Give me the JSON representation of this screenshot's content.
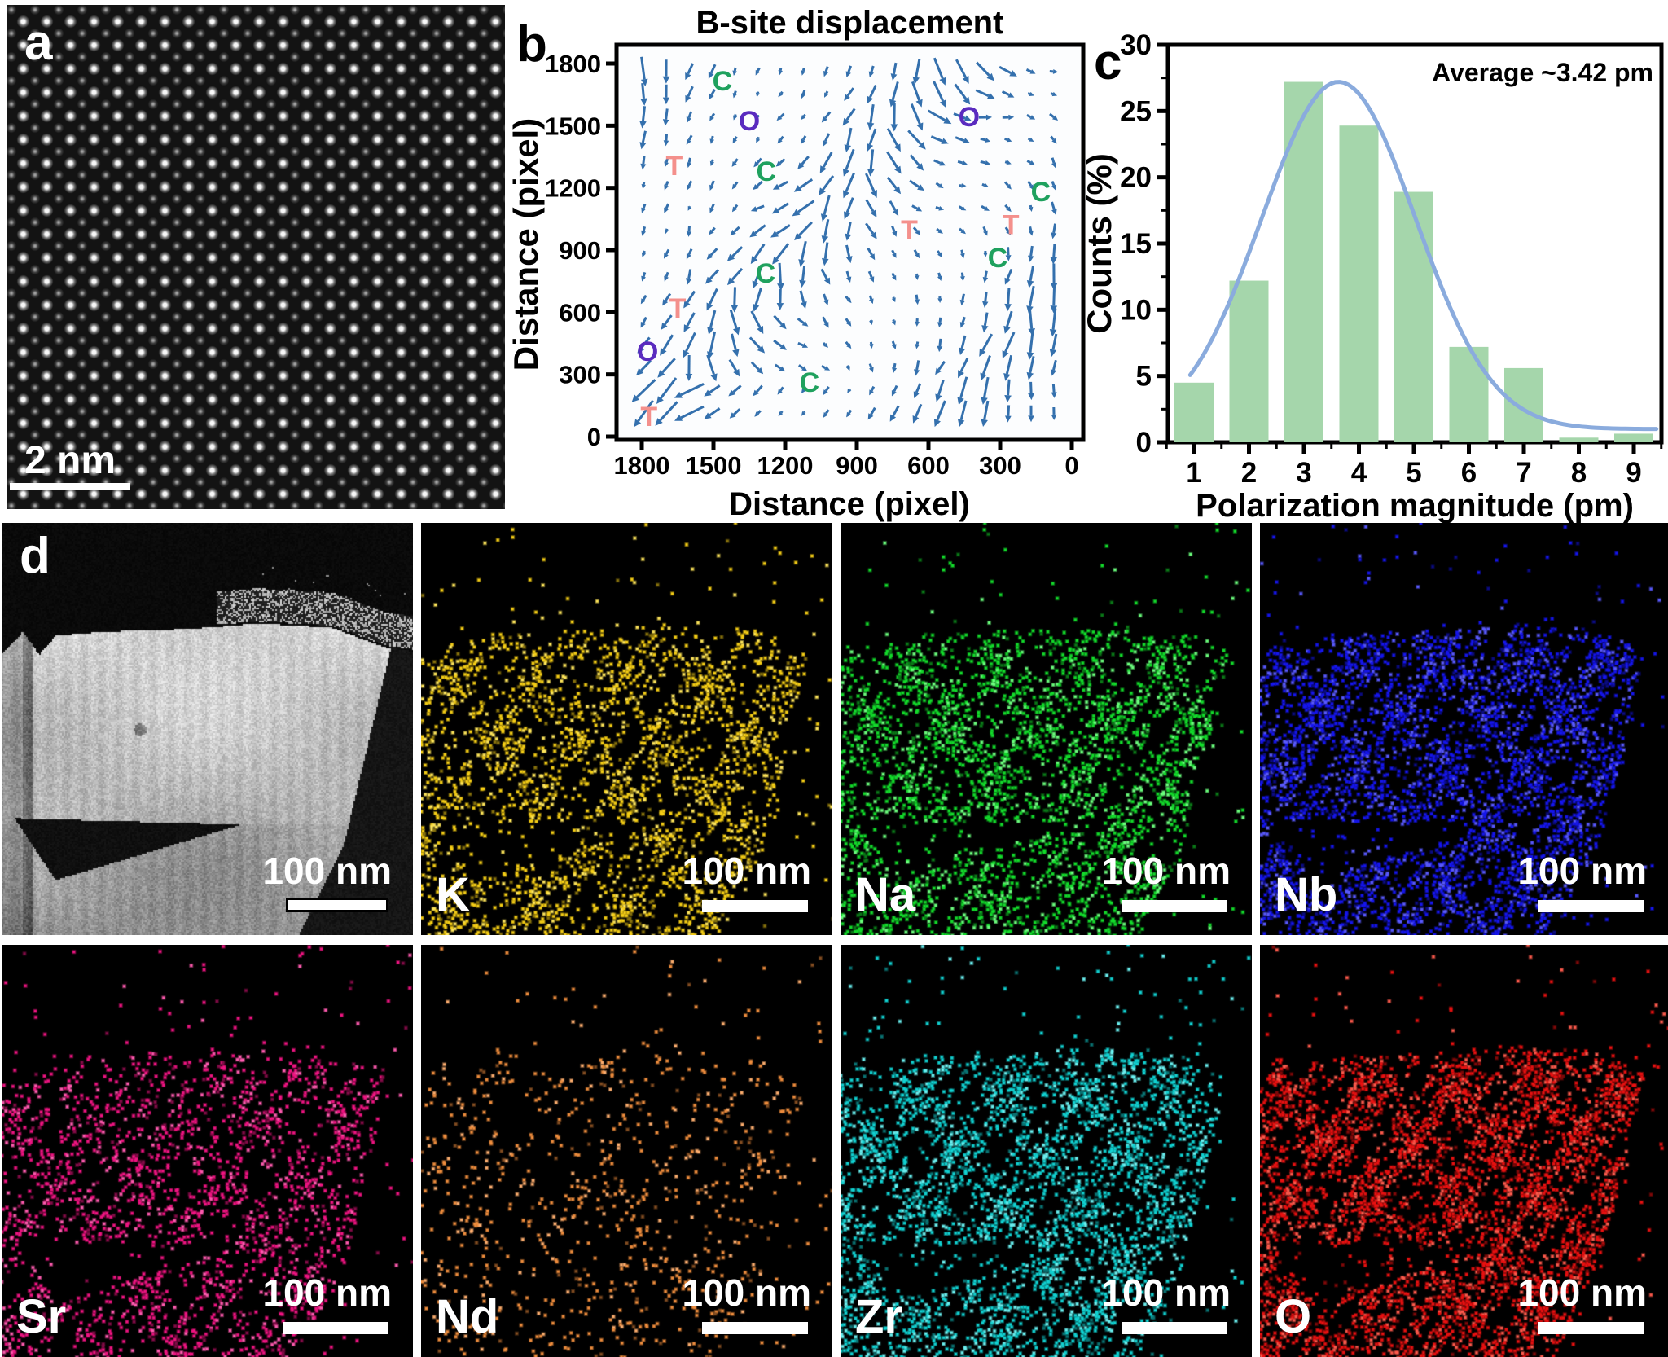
{
  "panels": {
    "a": {
      "letter": "a",
      "scalebar_label": "2 nm"
    },
    "b": {
      "letter": "b"
    },
    "c": {
      "letter": "c"
    },
    "d": {
      "letter": "d",
      "tiles": [
        {
          "kind": "haadf",
          "label": "",
          "scalebar_label": "100 nm",
          "seed": 11
        },
        {
          "kind": "map",
          "label": "K",
          "color": "#f6cf17",
          "bright": "#ffe65c",
          "density": 0.4,
          "scalebar_label": "100 nm",
          "seed": 21
        },
        {
          "kind": "map",
          "label": "Na",
          "color": "#14dd2c",
          "bright": "#6cff7e",
          "density": 0.48,
          "scalebar_label": "100 nm",
          "seed": 31
        },
        {
          "kind": "map",
          "label": "Nb",
          "color": "#1616ee",
          "bright": "#5a5aff",
          "density": 0.58,
          "scalebar_label": "100 nm",
          "seed": 41
        },
        {
          "kind": "map",
          "label": "Sr",
          "color": "#f01582",
          "bright": "#ff5cb0",
          "density": 0.34,
          "scalebar_label": "100 nm",
          "seed": 51
        },
        {
          "kind": "map",
          "label": "Nd",
          "color": "#f08e3e",
          "bright": "#ffb070",
          "density": 0.13,
          "scalebar_label": "100 nm",
          "seed": 61
        },
        {
          "kind": "map",
          "label": "Zr",
          "color": "#12d3d3",
          "bright": "#6cf2f2",
          "density": 0.5,
          "scalebar_label": "100 nm",
          "seed": 71
        },
        {
          "kind": "map",
          "label": "O",
          "color": "#ea1111",
          "bright": "#ff5b4d",
          "density": 0.62,
          "scalebar_label": "100 nm",
          "seed": 81
        }
      ]
    }
  },
  "chart_data": [
    {
      "type": "scatter",
      "subtype": "quiver",
      "title": "B-site displacement",
      "xlabel": "Distance (pixel)",
      "ylabel": "Distance (pixel)",
      "x_ticks": [
        1800,
        1500,
        1200,
        900,
        600,
        300,
        0
      ],
      "y_ticks": [
        0,
        300,
        600,
        900,
        1200,
        1500,
        1800
      ],
      "xlim": [
        1885,
        -45
      ],
      "ylim": [
        -15,
        1890
      ],
      "grid": false,
      "arrow_color": "#3470ad",
      "arrow_grid": {
        "cols": 19,
        "rows": 16,
        "seed": 7
      },
      "annotation_colors": {
        "C": "#1fa15e",
        "O": "#5a2bbf",
        "T": "#f4908c"
      },
      "annotations": [
        {
          "label": "C",
          "x": 1463,
          "y": 1714
        },
        {
          "label": "O",
          "x": 1350,
          "y": 1521
        },
        {
          "label": "T",
          "x": 1664,
          "y": 1305
        },
        {
          "label": "C",
          "x": 1279,
          "y": 1278
        },
        {
          "label": "C",
          "x": 130,
          "y": 1180
        },
        {
          "label": "T",
          "x": 680,
          "y": 995
        },
        {
          "label": "T",
          "x": 255,
          "y": 1020
        },
        {
          "label": "C",
          "x": 310,
          "y": 860
        },
        {
          "label": "C",
          "x": 1282,
          "y": 786
        },
        {
          "label": "T",
          "x": 1650,
          "y": 617
        },
        {
          "label": "O",
          "x": 1776,
          "y": 409
        },
        {
          "label": "C",
          "x": 1098,
          "y": 259
        },
        {
          "label": "T",
          "x": 1770,
          "y": 94
        },
        {
          "label": "O",
          "x": 430,
          "y": 1540
        }
      ]
    },
    {
      "type": "bar",
      "title": "",
      "categories": [
        1,
        2,
        3,
        4,
        5,
        6,
        7,
        8,
        9
      ],
      "values": [
        4.5,
        12.2,
        27.2,
        23.9,
        18.9,
        7.2,
        5.6,
        0.35,
        0.65
      ],
      "xlabel": "Polarization magnitude (pm)",
      "ylabel": "Counts (%)",
      "y_ticks": [
        0,
        5,
        10,
        15,
        20,
        25,
        30
      ],
      "ylim": [
        0,
        30
      ],
      "xlim": [
        0.5,
        9.5
      ],
      "bar_color": "#a5d6ab",
      "annotation": "Average ~3.42 pm",
      "curve": {
        "shape": "gaussian",
        "amplitude": 26.2,
        "mean": 3.63,
        "sigma": 1.4,
        "baseline": 1.0,
        "color": "#8aabdd"
      },
      "legend": null
    }
  ]
}
